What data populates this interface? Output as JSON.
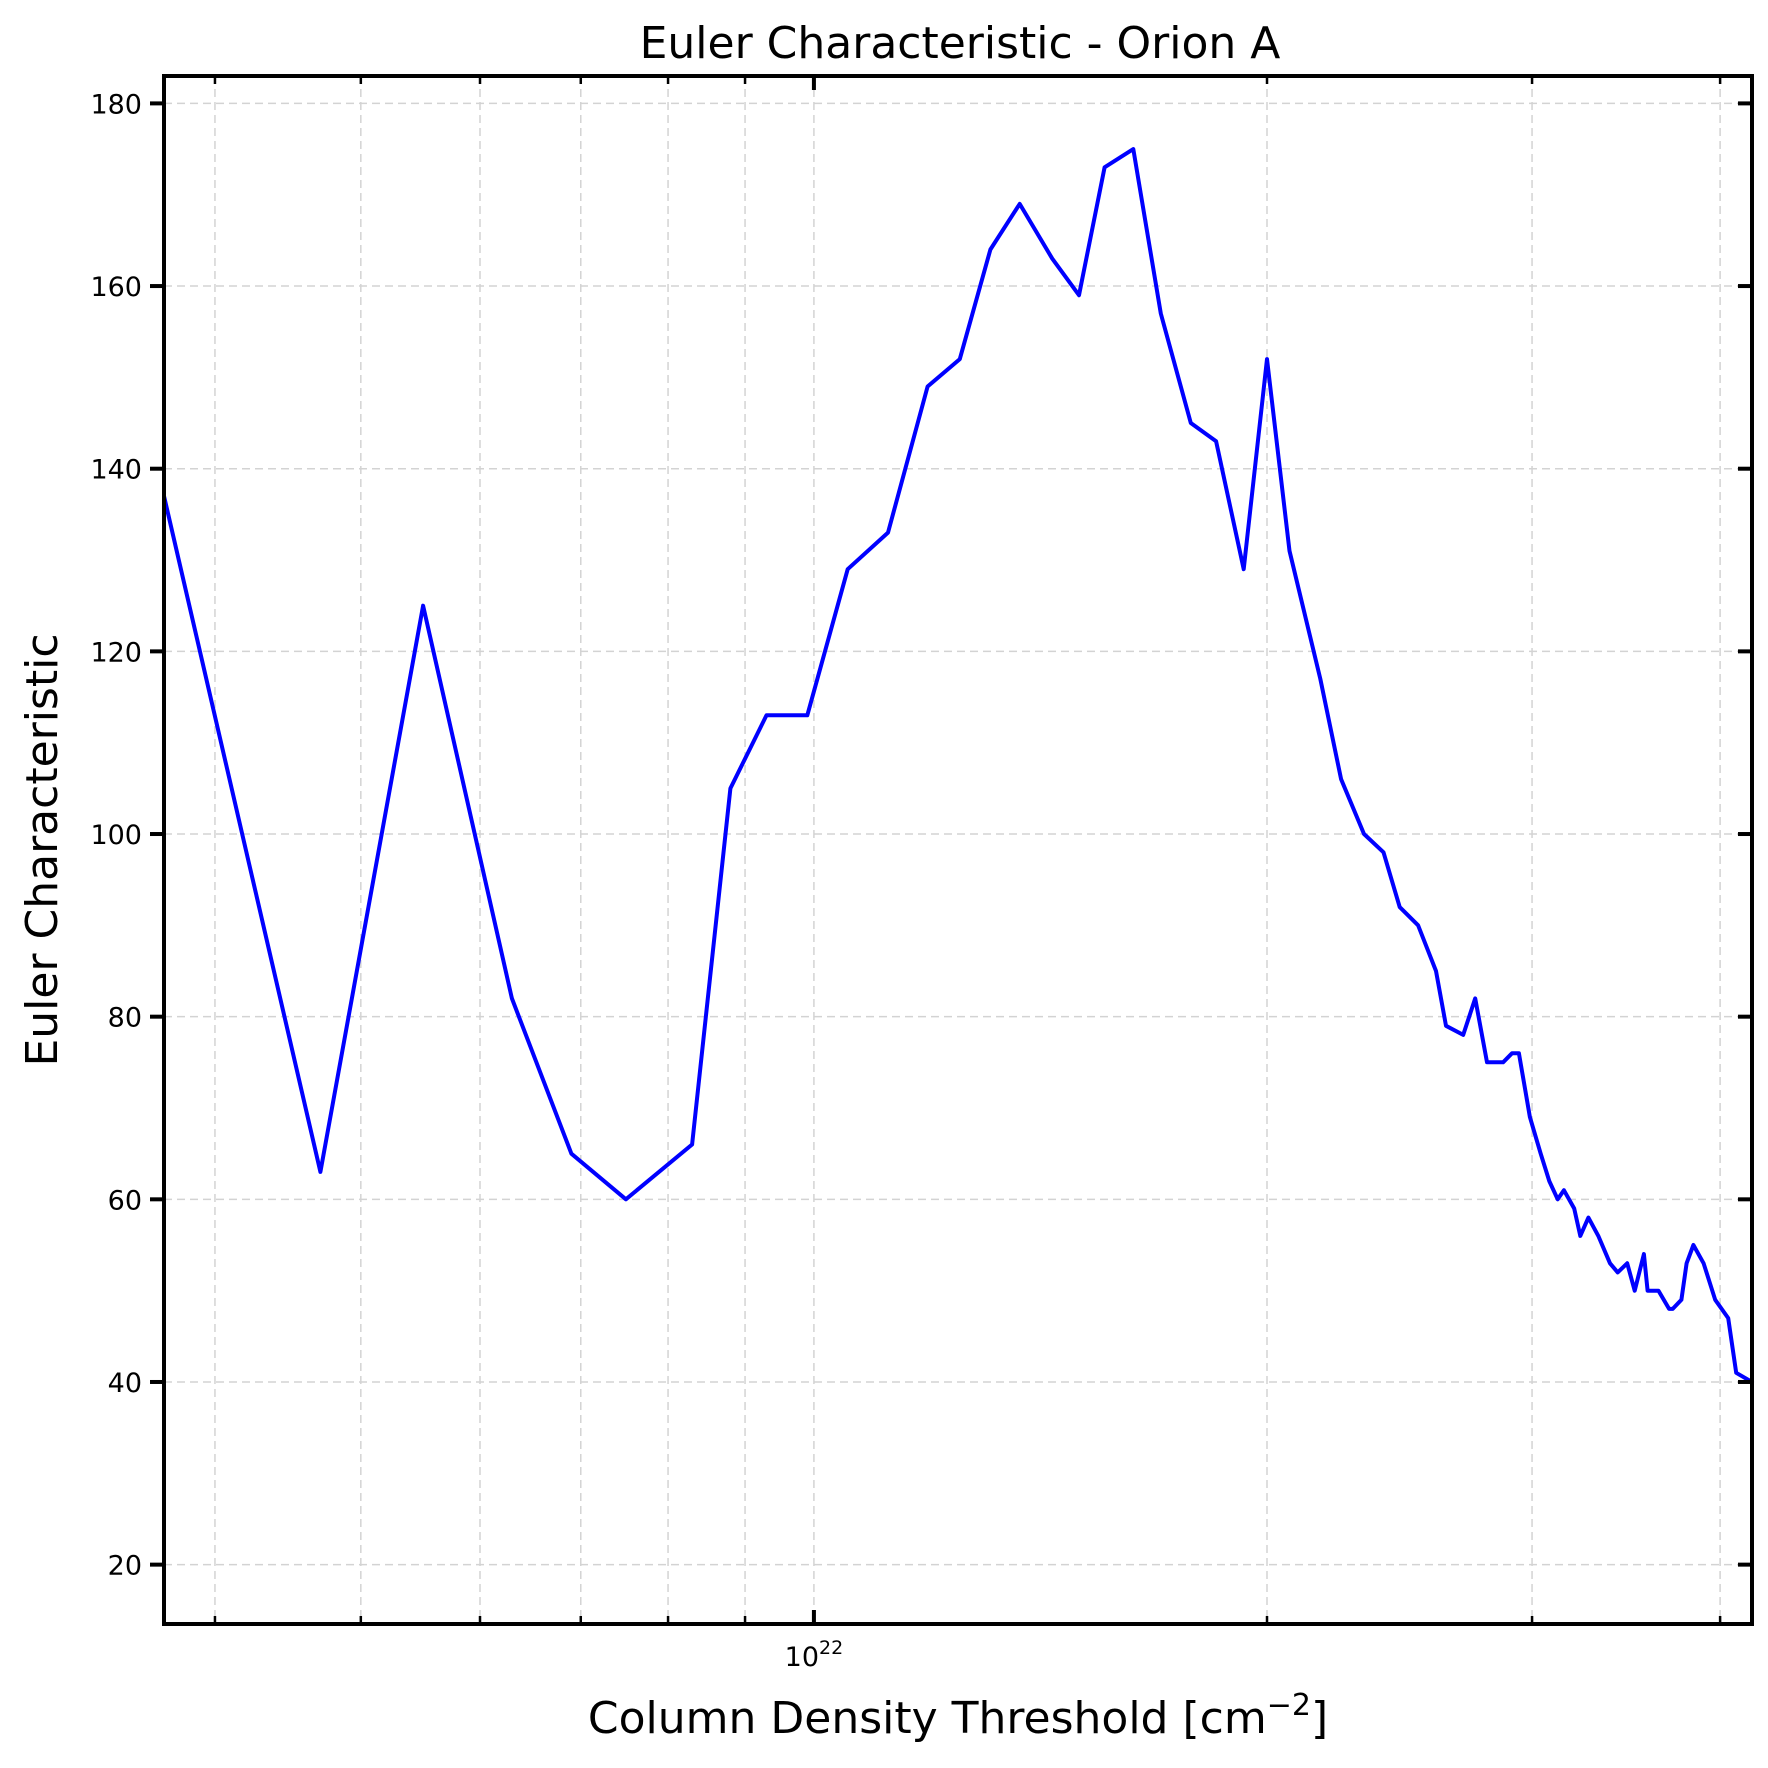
{
  "chart_data": {
    "type": "line",
    "title": "Euler Characteristic - Orion A",
    "xlabel_main": "Column Density Threshold [cm",
    "xlabel_sup": "−2",
    "xlabel_end": "]",
    "ylabel": "Euler Characteristic",
    "xscale": "log",
    "xlim": [
      3.7e+21,
      4.2e+22
    ],
    "ylim": [
      13.5,
      183
    ],
    "x_ticks": [
      {
        "value": 1e+22,
        "base": "10",
        "exp": "22"
      }
    ],
    "x_minor_ticks": [
      4e+21,
      5e+21,
      6e+21,
      7e+21,
      8e+21,
      9e+21,
      2e+22,
      3e+22,
      4e+22
    ],
    "y_ticks": [
      20,
      40,
      60,
      80,
      100,
      120,
      140,
      160,
      180
    ],
    "grid": true,
    "series": [
      {
        "color": "#0000ff",
        "x": [
          3.7e+21,
          4.7e+21,
          5.5e+21,
          6.3e+21,
          6.9e+21,
          7.5e+21,
          8.3e+21,
          8.8e+21,
          9.3e+21,
          9.9e+21,
          1.053e+22,
          1.12e+22,
          1.19e+22,
          1.25e+22,
          1.31e+22,
          1.37e+22,
          1.44e+22,
          1.5e+22,
          1.56e+22,
          1.63e+22,
          1.7e+22,
          1.78e+22,
          1.85e+22,
          1.93e+22,
          2e+22,
          2.07e+22,
          2.17e+22,
          2.24e+22,
          2.32e+22,
          2.39e+22,
          2.45e+22,
          2.52e+22,
          2.59e+22,
          2.63e+22,
          2.7e+22,
          2.75e+22,
          2.8e+22,
          2.87e+22,
          2.91e+22,
          2.94e+22,
          2.99e+22,
          3.04e+22,
          3.08e+22,
          3.12e+22,
          3.15e+22,
          3.2e+22,
          3.23e+22,
          3.27e+22,
          3.32e+22,
          3.38e+22,
          3.42e+22,
          3.47e+22,
          3.51e+22,
          3.56e+22,
          3.58e+22,
          3.64e+22,
          3.7e+22,
          3.72e+22,
          3.77e+22,
          3.8e+22,
          3.84e+22,
          3.9e+22,
          3.97e+22,
          4.05e+22,
          4.1e+22,
          4.2e+22
        ],
        "y": [
          137,
          63,
          125,
          82,
          65,
          60,
          66,
          105,
          113,
          113,
          129,
          133,
          149,
          152,
          164,
          169,
          163,
          159,
          173,
          175,
          157,
          145,
          143,
          129,
          152,
          131,
          117,
          106,
          100,
          98,
          92,
          90,
          85,
          79,
          78,
          82,
          75,
          75,
          76,
          76,
          69,
          65,
          62,
          60,
          61,
          59,
          56,
          58,
          56,
          53,
          52,
          53,
          50,
          54,
          50,
          50,
          48,
          48,
          49,
          53,
          55,
          53,
          49,
          47,
          41,
          40
        ]
      }
    ]
  }
}
